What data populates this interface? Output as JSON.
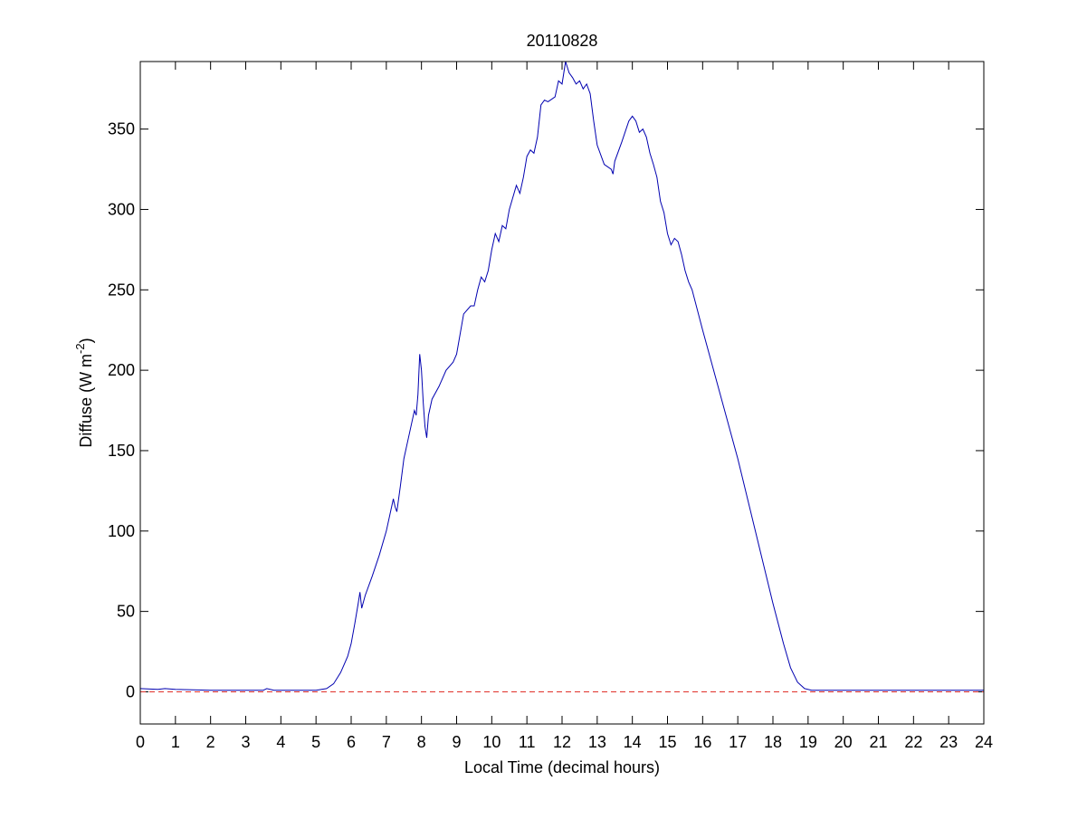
{
  "chart_data": {
    "type": "line",
    "title": "20110828",
    "xlabel": "Local Time (decimal hours)",
    "ylabel": {
      "text": "Diffuse (W m",
      "sup": "-2",
      "end": ")"
    },
    "xlim": [
      0,
      24
    ],
    "ylim": [
      -20,
      392
    ],
    "xticks": [
      0,
      1,
      2,
      3,
      4,
      5,
      6,
      7,
      8,
      9,
      10,
      11,
      12,
      13,
      14,
      15,
      16,
      17,
      18,
      19,
      20,
      21,
      22,
      23,
      24
    ],
    "yticks": [
      0,
      50,
      100,
      150,
      200,
      250,
      300,
      350
    ],
    "series": [
      {
        "color": "#0000b0",
        "style": "solid",
        "x": [
          0,
          0.5,
          0.7,
          1,
          2,
          3,
          3.5,
          3.6,
          3.8,
          4,
          5,
          5.3,
          5.5,
          5.7,
          5.9,
          6.0,
          6.1,
          6.2,
          6.25,
          6.3,
          6.4,
          6.6,
          6.8,
          7.0,
          7.1,
          7.2,
          7.25,
          7.3,
          7.4,
          7.5,
          7.6,
          7.7,
          7.8,
          7.85,
          7.9,
          7.95,
          8.0,
          8.05,
          8.1,
          8.15,
          8.2,
          8.3,
          8.5,
          8.7,
          8.9,
          9.0,
          9.2,
          9.4,
          9.5,
          9.6,
          9.7,
          9.8,
          9.9,
          10.0,
          10.1,
          10.2,
          10.3,
          10.4,
          10.5,
          10.7,
          10.8,
          10.9,
          11.0,
          11.1,
          11.2,
          11.3,
          11.4,
          11.5,
          11.6,
          11.8,
          11.9,
          12.0,
          12.1,
          12.2,
          12.3,
          12.4,
          12.5,
          12.6,
          12.7,
          12.8,
          12.9,
          13.0,
          13.2,
          13.4,
          13.45,
          13.5,
          13.7,
          13.9,
          14.0,
          14.1,
          14.2,
          14.3,
          14.4,
          14.5,
          14.6,
          14.7,
          14.8,
          14.9,
          15.0,
          15.1,
          15.2,
          15.3,
          15.4,
          15.5,
          15.6,
          15.7,
          16.0,
          16.5,
          17.0,
          17.5,
          18.0,
          18.3,
          18.5,
          18.7,
          18.9,
          19.1,
          20,
          21,
          22,
          23,
          24
        ],
        "values": [
          2,
          1.5,
          2,
          1.5,
          1,
          1,
          1,
          2,
          1,
          1,
          1,
          2,
          5,
          12,
          22,
          30,
          42,
          55,
          62,
          52,
          60,
          72,
          85,
          100,
          110,
          120,
          115,
          112,
          128,
          145,
          155,
          165,
          175,
          172,
          185,
          210,
          200,
          180,
          165,
          158,
          172,
          182,
          190,
          200,
          205,
          210,
          235,
          240,
          240,
          250,
          258,
          255,
          262,
          275,
          285,
          280,
          290,
          288,
          300,
          315,
          310,
          320,
          333,
          337,
          335,
          345,
          365,
          368,
          367,
          370,
          380,
          378,
          392,
          385,
          382,
          378,
          380,
          375,
          378,
          372,
          355,
          340,
          328,
          325,
          322,
          330,
          342,
          355,
          358,
          355,
          348,
          350,
          345,
          335,
          328,
          320,
          305,
          298,
          285,
          278,
          282,
          280,
          272,
          262,
          255,
          250,
          225,
          185,
          145,
          100,
          55,
          30,
          15,
          6,
          2,
          1,
          1,
          1,
          1,
          1,
          1
        ]
      },
      {
        "color": "#e0302a",
        "style": "dashed",
        "x": [
          0,
          24
        ],
        "values": [
          0,
          0
        ]
      }
    ]
  }
}
